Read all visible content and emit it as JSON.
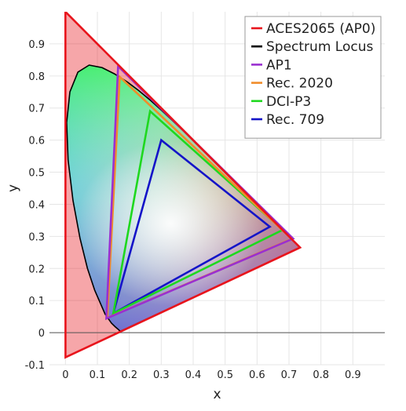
{
  "chart_data": {
    "type": "scatter",
    "title": "",
    "xlabel": "x",
    "ylabel": "y",
    "xlim": [
      -0.05,
      1.0
    ],
    "ylim": [
      -0.1,
      1.0
    ],
    "x_ticks": [
      0,
      0.1,
      0.2,
      0.3,
      0.4,
      0.5,
      0.6,
      0.7,
      0.8,
      0.9
    ],
    "x_tick_labels": [
      "0",
      "0.1",
      "0.2",
      "0.3",
      "0.4",
      "0.5",
      "0.6",
      "0.7",
      "0.8",
      "0.9"
    ],
    "y_ticks": [
      -0.1,
      0,
      0.1,
      0.2,
      0.3,
      0.4,
      0.5,
      0.6,
      0.7,
      0.8,
      0.9
    ],
    "y_tick_labels": [
      "-0.1",
      "0",
      "0.1",
      "0.2",
      "0.3",
      "0.4",
      "0.5",
      "0.6",
      "0.7",
      "0.8",
      "0.9"
    ],
    "grid": true,
    "legend_position": "top-right",
    "spectrum_locus": {
      "name": "Spectrum Locus",
      "color": "#000000",
      "x": [
        0.1741,
        0.1738,
        0.1733,
        0.1726,
        0.1714,
        0.1689,
        0.1644,
        0.1566,
        0.144,
        0.1241,
        0.0913,
        0.0687,
        0.0454,
        0.0235,
        0.0082,
        0.0039,
        0.0139,
        0.0389,
        0.0743,
        0.1142,
        0.1547,
        0.1929,
        0.2296,
        0.2658,
        0.3016,
        0.3373,
        0.3731,
        0.4087,
        0.4441,
        0.4788,
        0.5125,
        0.5448,
        0.5752,
        0.6029,
        0.627,
        0.6482,
        0.6658,
        0.6801,
        0.6915,
        0.7006,
        0.7079,
        0.714,
        0.719,
        0.723,
        0.726,
        0.7283,
        0.73,
        0.7347
      ],
      "y": [
        0.005,
        0.0049,
        0.0048,
        0.0048,
        0.0051,
        0.0069,
        0.0109,
        0.0177,
        0.0297,
        0.0578,
        0.1327,
        0.2007,
        0.295,
        0.4127,
        0.5384,
        0.6548,
        0.7502,
        0.812,
        0.8338,
        0.8262,
        0.8059,
        0.7816,
        0.7543,
        0.7243,
        0.6923,
        0.6589,
        0.6245,
        0.5896,
        0.5547,
        0.5202,
        0.4866,
        0.4544,
        0.4242,
        0.3965,
        0.3725,
        0.3514,
        0.334,
        0.3197,
        0.3083,
        0.2993,
        0.292,
        0.2859,
        0.2809,
        0.277,
        0.274,
        0.2717,
        0.27,
        0.2653
      ]
    },
    "series": [
      {
        "name": "ACES2065 (AP0)",
        "color": "#e8141c",
        "x": [
          0.7347,
          0.0,
          0.0001
        ],
        "y": [
          0.2653,
          1.0,
          -0.077
        ],
        "fill": true
      },
      {
        "name": "AP1",
        "color": "#9a2fd0",
        "x": [
          0.713,
          0.165,
          0.128
        ],
        "y": [
          0.293,
          0.83,
          0.044
        ],
        "fill": false
      },
      {
        "name": "Rec. 2020",
        "color": "#f08c2a",
        "x": [
          0.708,
          0.17,
          0.131
        ],
        "y": [
          0.292,
          0.797,
          0.046
        ],
        "fill": false
      },
      {
        "name": "DCI-P3",
        "color": "#1ed81e",
        "x": [
          0.68,
          0.265,
          0.15
        ],
        "y": [
          0.32,
          0.69,
          0.06
        ],
        "fill": false
      },
      {
        "name": "Rec. 709",
        "color": "#1414c8",
        "x": [
          0.64,
          0.3,
          0.15
        ],
        "y": [
          0.33,
          0.6,
          0.06
        ],
        "fill": false
      }
    ],
    "legend": [
      {
        "label": "ACES2065 (AP0)",
        "color": "#e8141c"
      },
      {
        "label": "Spectrum Locus",
        "color": "#000000"
      },
      {
        "label": "AP1",
        "color": "#9a2fd0"
      },
      {
        "label": "Rec. 2020",
        "color": "#f08c2a"
      },
      {
        "label": "DCI-P3",
        "color": "#1ed81e"
      },
      {
        "label": "Rec. 709",
        "color": "#1414c8"
      }
    ]
  }
}
